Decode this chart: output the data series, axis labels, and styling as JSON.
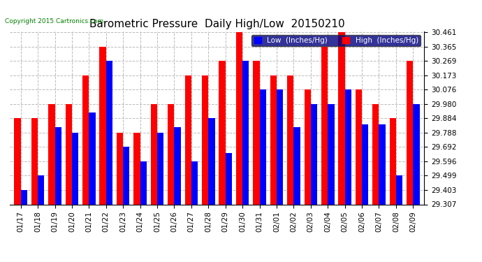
{
  "title": "Barometric Pressure  Daily High/Low  20150210",
  "copyright": "Copyright 2015 Cartronics.com",
  "background_color": "#ffffff",
  "plot_background": "#ffffff",
  "grid_color": "#bbbbbb",
  "dates": [
    "01/17",
    "01/18",
    "01/19",
    "01/20",
    "01/21",
    "01/22",
    "01/23",
    "01/24",
    "01/25",
    "01/26",
    "01/27",
    "01/28",
    "01/29",
    "01/30",
    "01/31",
    "02/01",
    "02/02",
    "02/03",
    "02/04",
    "02/05",
    "02/06",
    "02/07",
    "02/08",
    "02/09"
  ],
  "low_values": [
    29.403,
    29.499,
    29.826,
    29.788,
    29.922,
    30.269,
    29.692,
    29.596,
    29.788,
    29.826,
    29.596,
    29.884,
    29.653,
    30.269,
    30.076,
    30.076,
    29.826,
    29.98,
    29.98,
    30.076,
    29.845,
    29.845,
    29.499,
    29.98
  ],
  "high_values": [
    29.884,
    29.884,
    29.98,
    29.98,
    30.173,
    30.365,
    29.788,
    29.788,
    29.98,
    29.98,
    30.173,
    30.173,
    30.269,
    30.461,
    30.269,
    30.173,
    30.173,
    30.076,
    30.365,
    30.461,
    30.076,
    29.98,
    29.884,
    30.269
  ],
  "low_color": "#0000ff",
  "high_color": "#ff0000",
  "ylim_min": 29.307,
  "ylim_max": 30.461,
  "yticks": [
    29.307,
    29.403,
    29.499,
    29.596,
    29.692,
    29.788,
    29.884,
    29.98,
    30.076,
    30.173,
    30.269,
    30.365,
    30.461
  ],
  "legend_low_label": "Low  (Inches/Hg)",
  "legend_high_label": "High  (Inches/Hg)",
  "title_fontsize": 11,
  "tick_fontsize": 7.5,
  "legend_fontsize": 7.5,
  "bar_width": 0.38
}
